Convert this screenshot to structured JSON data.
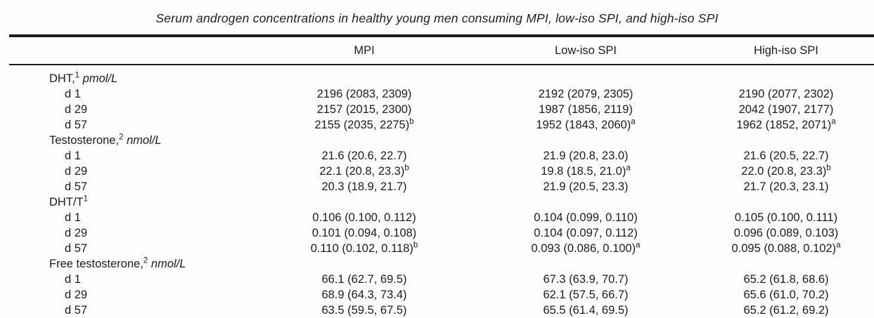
{
  "title": "Serum androgen concentrations in healthy young men consuming MPI, low-iso SPI, and high-iso SPI",
  "colors": {
    "background": "#fdfdfd",
    "text": "#1c1c1c",
    "rule": "#1b1b1b"
  },
  "table": {
    "column_headers": [
      "MPI",
      "Low-iso SPI",
      "High-iso SPI"
    ],
    "sections": [
      {
        "label": "DHT,",
        "footnote_sup": "1",
        "unit": "pmol/L",
        "rows": [
          {
            "label": "d 1",
            "cells": [
              {
                "value": "2196 (2083, 2309)"
              },
              {
                "value": "2192 (2079, 2305)"
              },
              {
                "value": "2190 (2077, 2302)"
              }
            ]
          },
          {
            "label": "d 29",
            "cells": [
              {
                "value": "2157 (2015, 2300)"
              },
              {
                "value": "1987 (1856, 2119)"
              },
              {
                "value": "2042 (1907, 2177)"
              }
            ]
          },
          {
            "label": "d 57",
            "cells": [
              {
                "value": "2155 (2035, 2275)",
                "sup": "b"
              },
              {
                "value": "1952 (1843, 2060)",
                "sup": "a"
              },
              {
                "value": "1962 (1852, 2071)",
                "sup": "a"
              }
            ]
          }
        ]
      },
      {
        "label": "Testosterone,",
        "footnote_sup": "2",
        "unit": "nmol/L",
        "rows": [
          {
            "label": "d 1",
            "cells": [
              {
                "value": "21.6 (20.6, 22.7)"
              },
              {
                "value": "21.9 (20.8, 23.0)"
              },
              {
                "value": "21.6 (20.5, 22.7)"
              }
            ]
          },
          {
            "label": "d 29",
            "cells": [
              {
                "value": "22.1 (20.8, 23.3)",
                "sup": "b"
              },
              {
                "value": "19.8 (18.5, 21.0)",
                "sup": "a"
              },
              {
                "value": "22.0 (20.8, 23.3)",
                "sup": "b"
              }
            ]
          },
          {
            "label": "d 57",
            "cells": [
              {
                "value": "20.3 (18.9, 21.7)"
              },
              {
                "value": "21.9 (20.5, 23.3)"
              },
              {
                "value": "21.7 (20.3, 23.1)"
              }
            ]
          }
        ]
      },
      {
        "label": "DHT/T",
        "footnote_sup": "1",
        "unit": "",
        "rows": [
          {
            "label": "d 1",
            "cells": [
              {
                "value": "0.106 (0.100, 0.112)"
              },
              {
                "value": "0.104 (0.099, 0.110)"
              },
              {
                "value": "0.105 (0.100, 0.111)"
              }
            ]
          },
          {
            "label": "d 29",
            "cells": [
              {
                "value": "0.101 (0.094, 0.108)"
              },
              {
                "value": "0.104 (0.097, 0.112)"
              },
              {
                "value": "0.096 (0.089, 0.103)"
              }
            ]
          },
          {
            "label": "d 57",
            "cells": [
              {
                "value": "0.110 (0.102, 0.118)",
                "sup": "b"
              },
              {
                "value": "0.093 (0.086, 0.100)",
                "sup": "a"
              },
              {
                "value": "0.095 (0.088, 0.102)",
                "sup": "a"
              }
            ]
          }
        ]
      },
      {
        "label": "Free testosterone,",
        "footnote_sup": "2",
        "unit": "nmol/L",
        "rows": [
          {
            "label": "d 1",
            "cells": [
              {
                "value": "66.1 (62.7, 69.5)"
              },
              {
                "value": "67.3 (63.9, 70.7)"
              },
              {
                "value": "65.2 (61.8, 68.6)"
              }
            ]
          },
          {
            "label": "d 29",
            "cells": [
              {
                "value": "68.9 (64.3, 73.4)"
              },
              {
                "value": "62.1 (57.5, 66.7)"
              },
              {
                "value": "65.6 (61.0, 70.2)"
              }
            ]
          },
          {
            "label": "d 57",
            "cells": [
              {
                "value": "63.5 (59.5, 67.5)"
              },
              {
                "value": "65.5 (61.4, 69.5)"
              },
              {
                "value": "65.2 (61.2, 69.2)"
              }
            ]
          }
        ]
      }
    ]
  }
}
